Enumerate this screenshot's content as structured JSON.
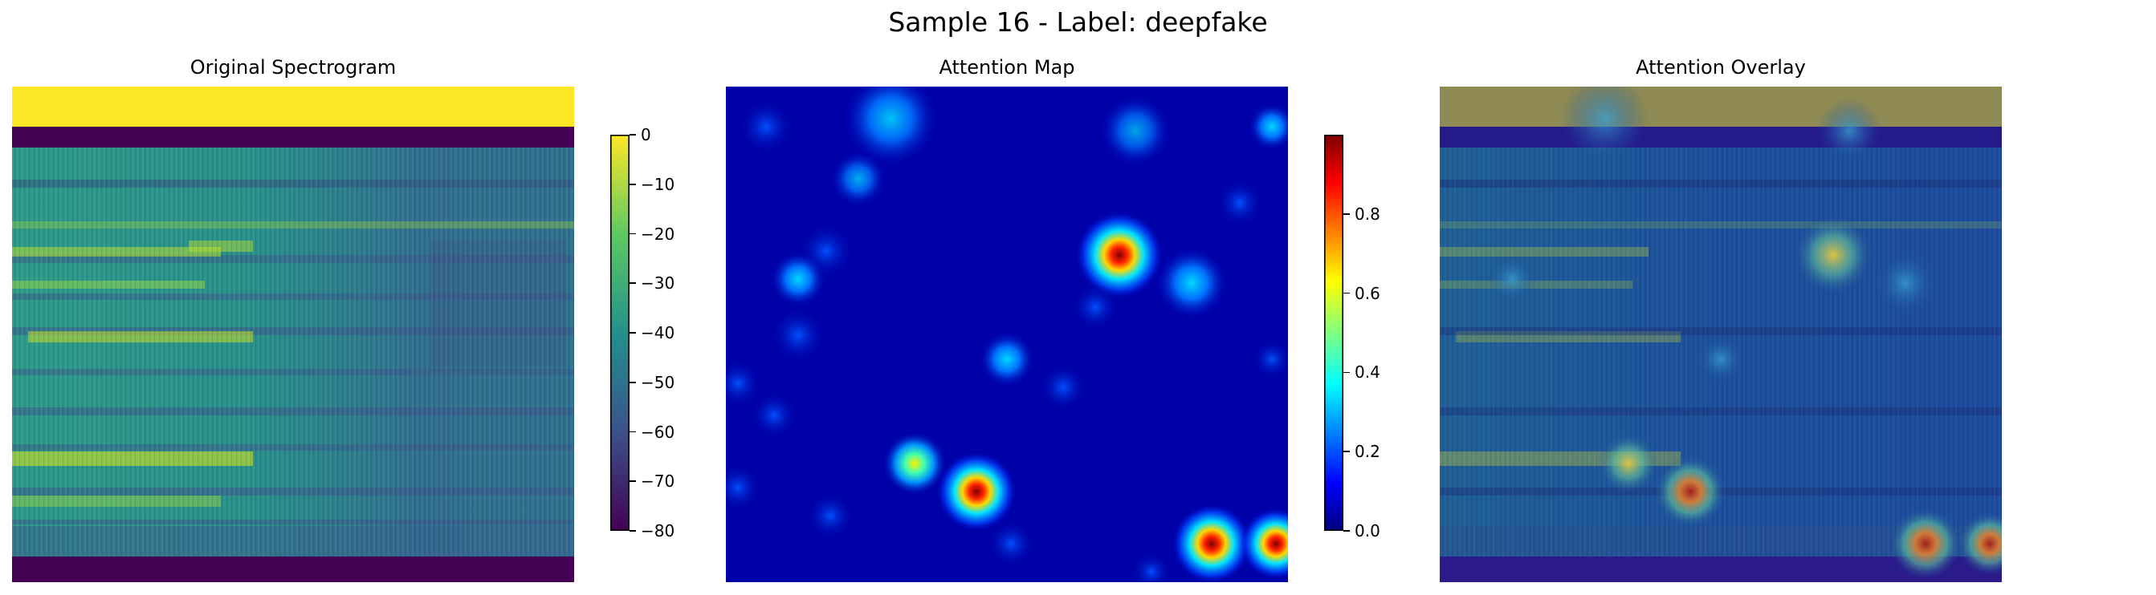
{
  "figure": {
    "suptitle": "Sample 16 - Label: deepfake"
  },
  "chart_data": [
    {
      "type": "heatmap",
      "title": "Original Spectrogram",
      "colormap": "viridis",
      "colorbar": {
        "ticks": [
          "0",
          "-10",
          "-20",
          "-30",
          "-40",
          "-50",
          "-60",
          "-70",
          "-80"
        ],
        "range": [
          -80,
          0
        ]
      },
      "axes": "off"
    },
    {
      "type": "heatmap",
      "title": "Attention Map",
      "colormap": "jet",
      "colorbar": {
        "ticks": [
          "0.8",
          "0.6",
          "0.4",
          "0.2",
          "0.0"
        ],
        "range": [
          0.0,
          1.0
        ]
      },
      "axes": "off",
      "peak_values": [
        0.95,
        0.92,
        0.88,
        0.8,
        0.55,
        0.5,
        0.45
      ]
    },
    {
      "type": "heatmap",
      "title": "Attention Overlay",
      "colormap": "jet over viridis",
      "axes": "off"
    }
  ],
  "colors": {
    "viridis_top": "#fde725",
    "viridis_bottom": "#440154",
    "jet_high": "#800000",
    "jet_low": "#00007f"
  }
}
